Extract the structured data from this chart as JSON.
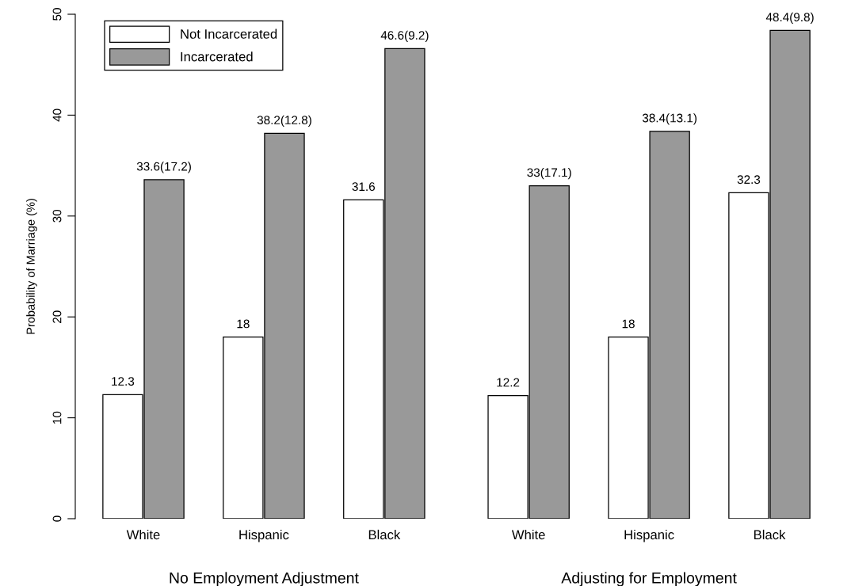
{
  "chart_data": {
    "type": "bar",
    "ylabel": "Probability of Marriage (%)",
    "categories": [
      "White",
      "Hispanic",
      "Black",
      "White",
      "Hispanic",
      "Black"
    ],
    "series": [
      {
        "name": "Not Incarcerated",
        "color": "#ffffff",
        "values": [
          12.3,
          18,
          31.6,
          12.2,
          18,
          32.3
        ],
        "value_labels": [
          "12.3",
          "18",
          "31.6",
          "12.2",
          "18",
          "32.3"
        ]
      },
      {
        "name": "Incarcerated",
        "color": "#999999",
        "values": [
          33.6,
          38.2,
          46.6,
          33,
          38.4,
          48.4
        ],
        "value_labels": [
          "33.6(17.2)",
          "38.2(12.8)",
          "46.6(9.2)",
          "33(17.1)",
          "38.4(13.1)",
          "48.4(9.8)"
        ]
      }
    ],
    "annotations": [
      "No Employment Adjustment",
      "Adjusting for Employment"
    ],
    "ylim": [
      0,
      50
    ],
    "yticks": [
      0,
      10,
      20,
      30,
      40,
      50
    ],
    "legend": "top left",
    "grid": false
  }
}
